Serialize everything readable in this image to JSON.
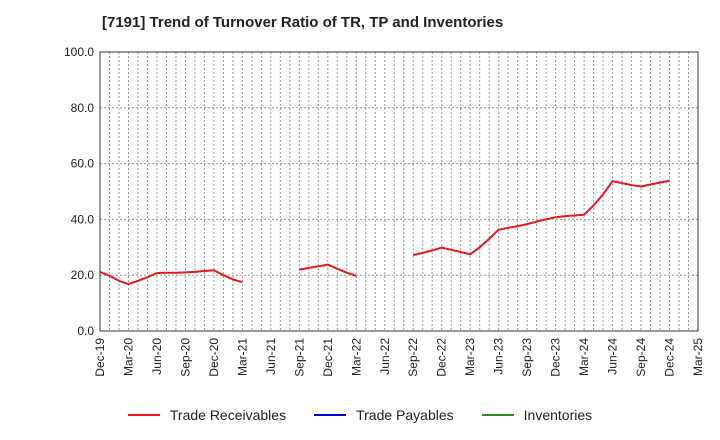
{
  "chart_data": {
    "type": "line",
    "title": "[7191]  Trend of Turnover Ratio of TR, TP and Inventories",
    "xlabel": "",
    "ylabel": "",
    "ylim": [
      0,
      100
    ],
    "y_ticks": [
      "0.0",
      "20.0",
      "40.0",
      "60.0",
      "80.0",
      "100.0"
    ],
    "grid": true,
    "legend_position": "bottom",
    "categories": [
      "Dec-19",
      "Jan-20",
      "Feb-20",
      "Mar-20",
      "Apr-20",
      "May-20",
      "Jun-20",
      "Jul-20",
      "Aug-20",
      "Sep-20",
      "Oct-20",
      "Nov-20",
      "Dec-20",
      "Jan-21",
      "Feb-21",
      "Mar-21",
      "Apr-21",
      "May-21",
      "Jun-21",
      "Jul-21",
      "Aug-21",
      "Sep-21",
      "Oct-21",
      "Nov-21",
      "Dec-21",
      "Jan-22",
      "Feb-22",
      "Mar-22",
      "Apr-22",
      "May-22",
      "Jun-22",
      "Jul-22",
      "Aug-22",
      "Sep-22",
      "Oct-22",
      "Nov-22",
      "Dec-22",
      "Jan-23",
      "Feb-23",
      "Mar-23",
      "Apr-23",
      "May-23",
      "Jun-23",
      "Jul-23",
      "Aug-23",
      "Sep-23",
      "Oct-23",
      "Nov-23",
      "Dec-23",
      "Jan-24",
      "Feb-24",
      "Mar-24",
      "Apr-24",
      "May-24",
      "Jun-24",
      "Jul-24",
      "Aug-24",
      "Sep-24",
      "Oct-24",
      "Nov-24",
      "Dec-24",
      "Jan-25",
      "Feb-25",
      "Mar-25"
    ],
    "x_tick_labels": [
      "Dec-19",
      "Mar-20",
      "Jun-20",
      "Sep-20",
      "Dec-20",
      "Mar-21",
      "Jun-21",
      "Sep-21",
      "Dec-21",
      "Mar-22",
      "Jun-22",
      "Sep-22",
      "Dec-22",
      "Mar-23",
      "Jun-23",
      "Sep-23",
      "Dec-23",
      "Mar-24",
      "Jun-24",
      "Sep-24",
      "Dec-24",
      "Mar-25"
    ],
    "series": [
      {
        "name": "Trade Receivables",
        "color": "#e41a1c",
        "points": [
          {
            "x": "Dec-19",
            "y": 21.2
          },
          {
            "x": "Jan-20",
            "y": 19.8
          },
          {
            "x": "Feb-20",
            "y": 18.0
          },
          {
            "x": "Mar-20",
            "y": 16.8
          },
          {
            "x": "Apr-20",
            "y": 18.0
          },
          {
            "x": "May-20",
            "y": 19.3
          },
          {
            "x": "Jun-20",
            "y": 20.8
          },
          {
            "x": "Jul-20",
            "y": 20.9
          },
          {
            "x": "Aug-20",
            "y": 20.9
          },
          {
            "x": "Sep-20",
            "y": 21.0
          },
          {
            "x": "Oct-20",
            "y": 21.2
          },
          {
            "x": "Nov-20",
            "y": 21.5
          },
          {
            "x": "Dec-20",
            "y": 21.8
          },
          {
            "x": "Jan-21",
            "y": 20.0
          },
          {
            "x": "Feb-21",
            "y": 18.5
          },
          {
            "x": "Mar-21",
            "y": 17.5
          },
          {
            "x": "Sep-21",
            "y": 22.0
          },
          {
            "x": "Oct-21",
            "y": 22.6
          },
          {
            "x": "Nov-21",
            "y": 23.2
          },
          {
            "x": "Dec-21",
            "y": 23.8
          },
          {
            "x": "Jan-22",
            "y": 22.3
          },
          {
            "x": "Feb-22",
            "y": 20.9
          },
          {
            "x": "Mar-22",
            "y": 19.8
          },
          {
            "x": "Sep-22",
            "y": 27.2
          },
          {
            "x": "Oct-22",
            "y": 28.0
          },
          {
            "x": "Nov-22",
            "y": 28.9
          },
          {
            "x": "Dec-22",
            "y": 29.9
          },
          {
            "x": "Jan-23",
            "y": 29.1
          },
          {
            "x": "Feb-23",
            "y": 28.3
          },
          {
            "x": "Mar-23",
            "y": 27.5
          },
          {
            "x": "Apr-23",
            "y": 30.0
          },
          {
            "x": "May-23",
            "y": 33.0
          },
          {
            "x": "Jun-23",
            "y": 36.3
          },
          {
            "x": "Jul-23",
            "y": 37.0
          },
          {
            "x": "Aug-23",
            "y": 37.6
          },
          {
            "x": "Sep-23",
            "y": 38.3
          },
          {
            "x": "Oct-23",
            "y": 39.2
          },
          {
            "x": "Nov-23",
            "y": 40.0
          },
          {
            "x": "Dec-23",
            "y": 40.8
          },
          {
            "x": "Jan-24",
            "y": 41.2
          },
          {
            "x": "Feb-24",
            "y": 41.4
          },
          {
            "x": "Mar-24",
            "y": 41.7
          },
          {
            "x": "Apr-24",
            "y": 45.0
          },
          {
            "x": "May-24",
            "y": 49.0
          },
          {
            "x": "Jun-24",
            "y": 53.7
          },
          {
            "x": "Jul-24",
            "y": 53.0
          },
          {
            "x": "Aug-24",
            "y": 52.3
          },
          {
            "x": "Sep-24",
            "y": 51.8
          },
          {
            "x": "Oct-24",
            "y": 52.5
          },
          {
            "x": "Nov-24",
            "y": 53.2
          },
          {
            "x": "Dec-24",
            "y": 53.9
          }
        ],
        "gaps_after": [
          "Mar-21",
          "Mar-22"
        ]
      },
      {
        "name": "Trade Payables",
        "color": "#0000cc",
        "points": []
      },
      {
        "name": "Inventories",
        "color": "#2e8b22",
        "points": []
      }
    ]
  }
}
